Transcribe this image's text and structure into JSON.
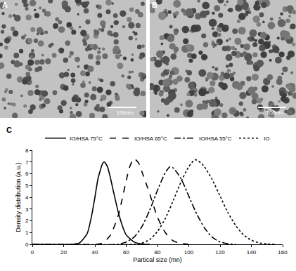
{
  "panels": [
    {
      "label": "A",
      "scale_bar": "100nm"
    },
    {
      "label": "B",
      "scale_bar": "100nm"
    }
  ],
  "chart_data": {
    "type": "line",
    "annotations": [
      "C"
    ],
    "x_label": "Partical size (mn)",
    "y_label": "Density distribution (a.u.)",
    "xlim": [
      0,
      160
    ],
    "xticks": [
      0,
      20,
      40,
      60,
      80,
      100,
      120,
      140,
      160
    ],
    "ylim": [
      0,
      8
    ],
    "yticks": [
      0,
      1,
      2,
      3,
      4,
      5,
      6,
      7,
      8
    ],
    "grid": false,
    "legend": "top",
    "series": [
      {
        "name": "IO/HSA 75°C",
        "color": "#000000",
        "line_style": "solid",
        "x": [
          0,
          25,
          30,
          35,
          38,
          40,
          42,
          45,
          46,
          48,
          50,
          52,
          55,
          58,
          60,
          65,
          70,
          75
        ],
        "values": [
          0,
          0,
          0.1,
          0.9,
          2.5,
          4.0,
          5.6,
          6.9,
          7.0,
          6.6,
          5.6,
          4.4,
          2.7,
          1.4,
          0.8,
          0.2,
          0.03,
          0
        ]
      },
      {
        "name": "IO/HSA 65°C",
        "color": "#000000",
        "line_style": "dash",
        "x": [
          0,
          40,
          45,
          50,
          55,
          58,
          60,
          62,
          65,
          68,
          70,
          75,
          80,
          85,
          90,
          95,
          100
        ],
        "values": [
          0,
          0,
          0.1,
          0.8,
          2.5,
          4.2,
          5.4,
          6.5,
          7.3,
          6.9,
          6.2,
          4.3,
          2.3,
          1.0,
          0.3,
          0.08,
          0
        ]
      },
      {
        "name": "IO/HSA 55°C",
        "color": "#000000",
        "line_style": "dashdot",
        "x": [
          0,
          55,
          60,
          65,
          70,
          75,
          80,
          85,
          88,
          90,
          95,
          100,
          105,
          110,
          115,
          120,
          125,
          130
        ],
        "values": [
          0,
          0,
          0.2,
          0.6,
          1.5,
          2.9,
          4.6,
          6.1,
          6.6,
          6.5,
          5.6,
          4.1,
          2.6,
          1.4,
          0.6,
          0.2,
          0.05,
          0
        ]
      },
      {
        "name": "IO",
        "color": "#000000",
        "line_style": "dot",
        "x": [
          0,
          65,
          70,
          75,
          80,
          85,
          90,
          95,
          100,
          104,
          108,
          110,
          115,
          120,
          125,
          130,
          135,
          140,
          145,
          150,
          155
        ],
        "values": [
          0,
          0,
          0.1,
          0.4,
          1.1,
          2.2,
          3.7,
          5.3,
          6.6,
          7.2,
          6.9,
          6.6,
          5.5,
          4.1,
          2.7,
          1.6,
          0.8,
          0.35,
          0.12,
          0.03,
          0
        ]
      }
    ]
  }
}
